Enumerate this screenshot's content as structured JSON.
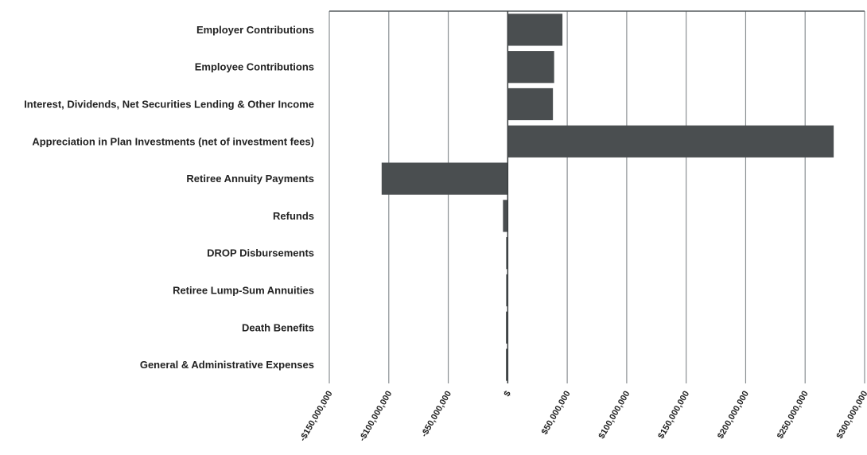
{
  "chart_data": {
    "type": "bar",
    "orientation": "horizontal",
    "title": "",
    "xlabel": "",
    "ylabel": "",
    "categories": [
      "Employer Contributions",
      "Employee Contributions",
      "Interest, Dividends, Net Securities Lending & Other Income",
      "Appreciation in Plan Investments  (net of investment fees)",
      "Retiree Annuity Payments",
      "Refunds",
      "DROP Disbursements",
      "Retiree Lump-Sum Annuities",
      "Death Benefits",
      "General & Administrative Expenses"
    ],
    "values": [
      46000000,
      39000000,
      38000000,
      274000000,
      -106000000,
      -4000000,
      -1000000,
      -1000000,
      -1500000,
      -1500000
    ],
    "xlim": [
      -150000000,
      300000000
    ],
    "xticks": [
      -150000000,
      -100000000,
      -50000000,
      0,
      50000000,
      100000000,
      150000000,
      200000000,
      250000000,
      300000000
    ],
    "xtick_labels": [
      "-$150,000,000",
      "-$100,000,000",
      "-$50,000,000",
      "$",
      "$50,000,000",
      "$100,000,000",
      "$150,000,000",
      "$200,000,000",
      "$250,000,000",
      "$300,000,000"
    ],
    "grid": "vertical",
    "legend": "none",
    "bar_color": "#4a4e50"
  }
}
